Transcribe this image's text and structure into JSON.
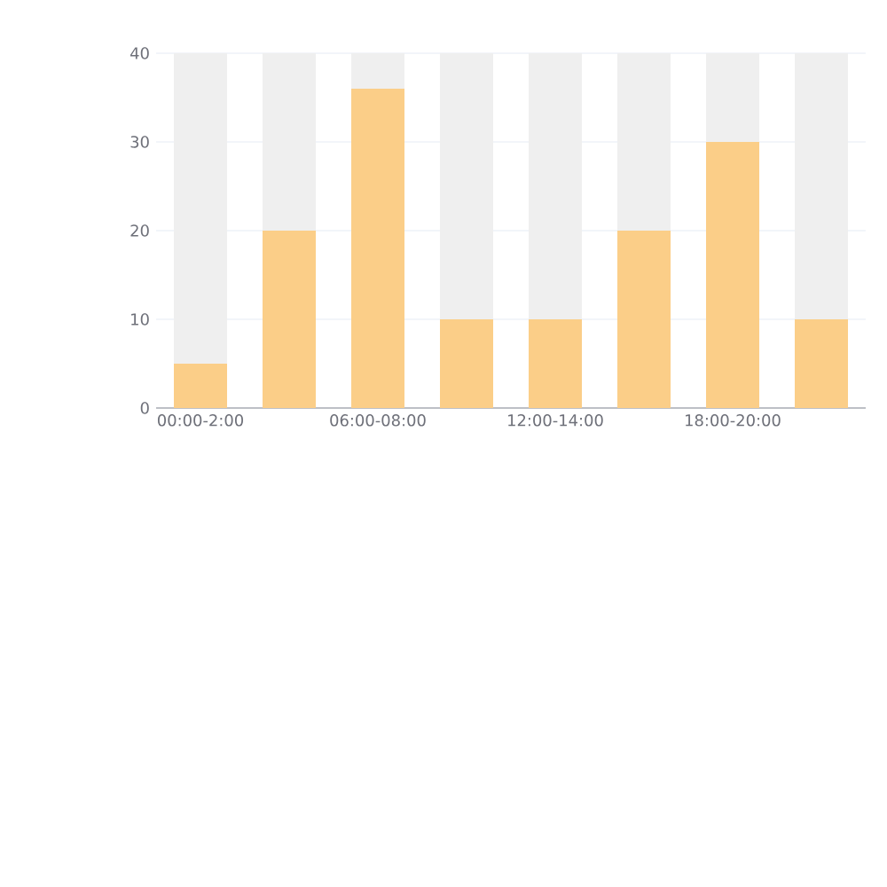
{
  "chart_data": {
    "type": "bar",
    "stacked": true,
    "categories": [
      "00:00-2:00",
      null,
      "06:00-08:00",
      null,
      "12:00-14:00",
      null,
      "18:00-20:00",
      null
    ],
    "series": [
      {
        "color": "#fbce88",
        "values": [
          5,
          20,
          36,
          10,
          10,
          20,
          30,
          10
        ]
      },
      {
        "color": "#efefef",
        "values": [
          35,
          20,
          4,
          30,
          30,
          20,
          10,
          30
        ]
      }
    ],
    "ylim": [
      0,
      40
    ],
    "yticks": [
      0,
      10,
      20,
      30,
      40
    ],
    "grid": "y"
  }
}
